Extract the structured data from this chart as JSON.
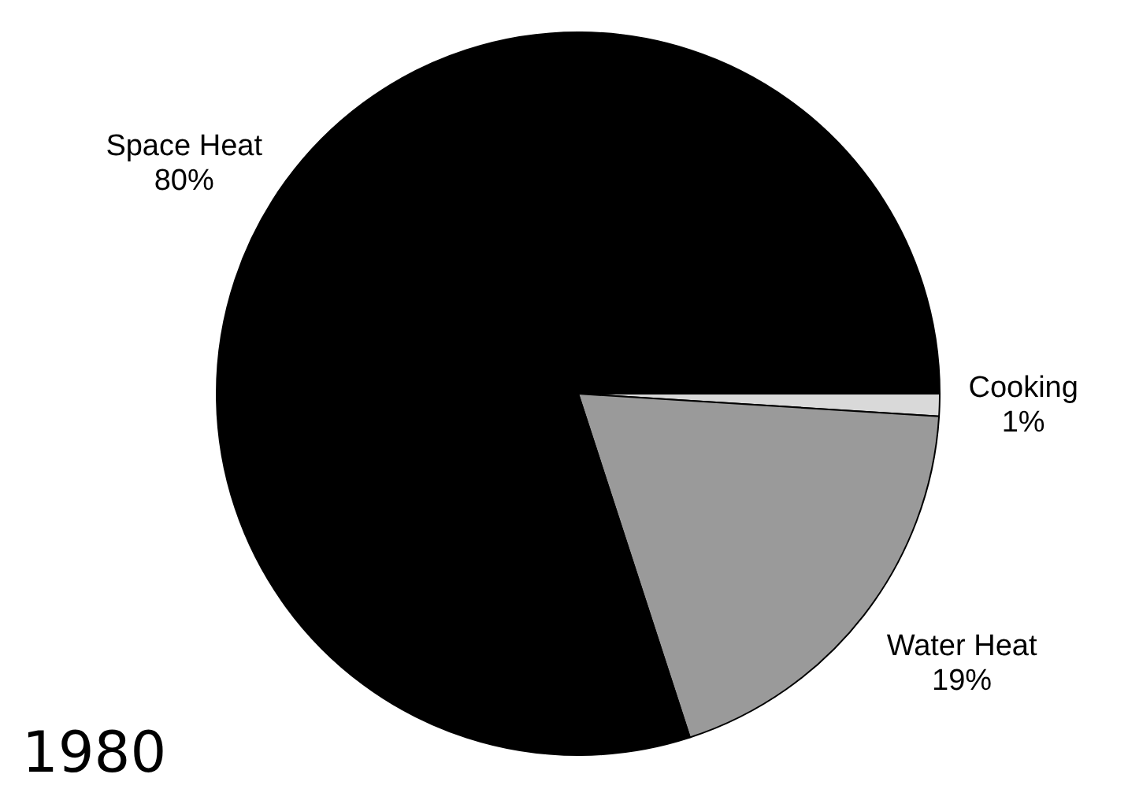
{
  "chart_data": {
    "type": "pie",
    "title": "1980",
    "categories": [
      "Cooking",
      "Water Heat",
      "Space Heat"
    ],
    "values": [
      1,
      19,
      80
    ],
    "colors": [
      "#d9d9d9",
      "#9a9a9a",
      "#000000"
    ],
    "value_labels": [
      "1%",
      "19%",
      "80%"
    ]
  }
}
